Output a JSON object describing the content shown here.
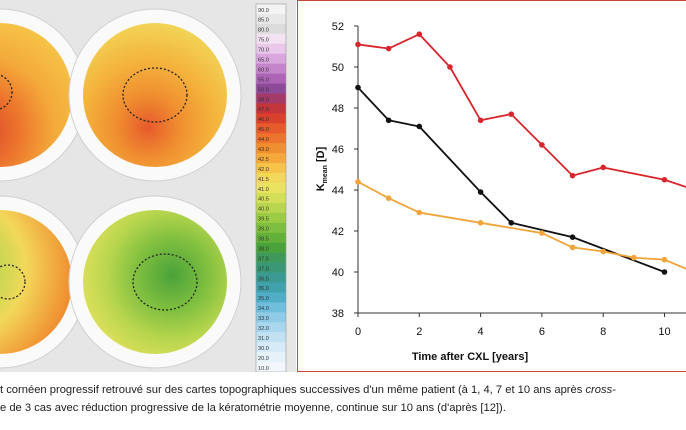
{
  "topo_scale": {
    "labels": [
      "90.0",
      "85.0",
      "80.0",
      "75.0",
      "70.0",
      "65.0",
      "60.0",
      "55.0",
      "50.0",
      "48.0",
      "47.0",
      "46.0",
      "45.0",
      "44.0",
      "43.0",
      "42.5",
      "42.0",
      "41.5",
      "41.0",
      "40.5",
      "40.0",
      "39.5",
      "39.0",
      "38.5",
      "38.0",
      "37.5",
      "37.0",
      "36.5",
      "36.0",
      "35.0",
      "34.0",
      "33.0",
      "32.0",
      "31.0",
      "30.0",
      "20.0",
      "10.0"
    ],
    "colors": [
      "#f4f4f4",
      "#e8e8e8",
      "#dcdcdc",
      "#f2e2f2",
      "#e9c8ea",
      "#d9a6de",
      "#c484c9",
      "#ad64b6",
      "#8d4a98",
      "#a43a6a",
      "#c2363b",
      "#d8412c",
      "#e65a2b",
      "#ec742c",
      "#f08f30",
      "#f4a93a",
      "#f6c449",
      "#f2d85a",
      "#e9e35f",
      "#d4df58",
      "#b9d64e",
      "#9ccb45",
      "#7fbf3f",
      "#63b139",
      "#4aa23a",
      "#3f9a5a",
      "#3a9876",
      "#3b9a92",
      "#41a2ad",
      "#52aec6",
      "#6fbedb",
      "#8fcbe6",
      "#a9d7ee",
      "#c2e2f4",
      "#d6ebf7",
      "#e6f2fa",
      "#f1f7fc"
    ]
  },
  "chart_data": {
    "type": "line",
    "xlabel": "Time after CXL [years]",
    "ylabel_main": "K",
    "ylabel_sub": "mean",
    "ylabel_unit": " [D]",
    "xlim": [
      0,
      10.8
    ],
    "ylim": [
      38,
      52
    ],
    "xticks": [
      0,
      2,
      4,
      6,
      8,
      10
    ],
    "yticks": [
      38,
      40,
      42,
      44,
      46,
      48,
      50,
      52
    ],
    "grid": false,
    "series": [
      {
        "color": "#d9262c",
        "x": [
          0,
          1,
          2,
          3,
          4,
          5,
          6,
          7,
          8,
          10,
          10.8
        ],
        "y": [
          51.1,
          50.9,
          51.6,
          50.0,
          47.4,
          47.7,
          46.2,
          44.7,
          45.1,
          44.5,
          44.1
        ]
      },
      {
        "color": "#111111",
        "x": [
          0,
          1,
          2,
          4,
          5,
          7,
          10
        ],
        "y": [
          49.0,
          47.4,
          47.1,
          43.9,
          42.4,
          41.7,
          40.0
        ]
      },
      {
        "color": "#f0a43a",
        "x": [
          0,
          1,
          2,
          4,
          6,
          7,
          8,
          9,
          10,
          10.8
        ],
        "y": [
          44.4,
          43.6,
          42.9,
          42.4,
          41.9,
          41.2,
          41.0,
          40.7,
          40.6,
          40.1
        ]
      }
    ]
  },
  "caption": {
    "line1": "t cornéen progressif retrouvé sur des cartes topographiques successives d'un même patient (à 1, 4, 7 et 10 ans après",
    "line1_italic": " cross-",
    "line2": "e de 3 cas avec réduction progressive de la kératométrie moyenne, continue sur 10 ans (d'après [12])."
  }
}
